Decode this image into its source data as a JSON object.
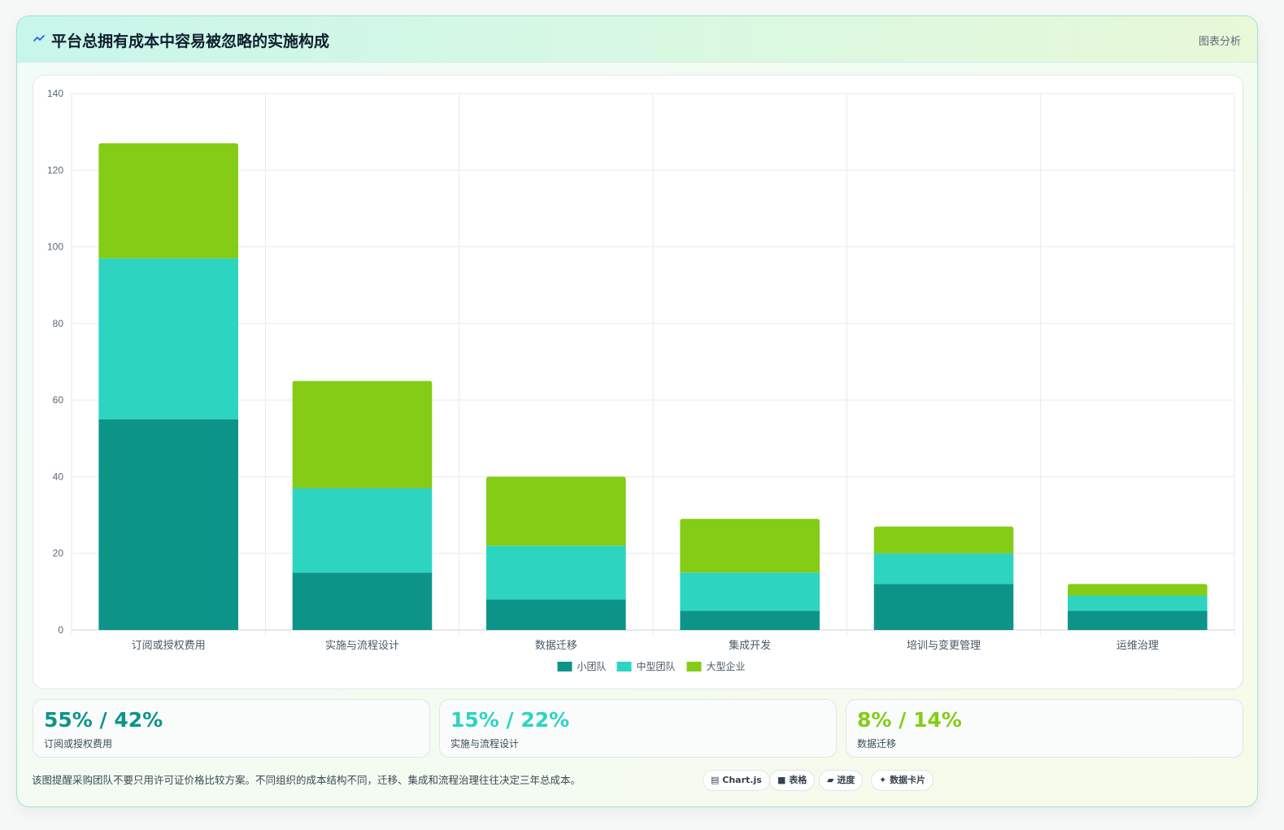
{
  "header": {
    "title": "平台总拥有成本中容易被忽略的实施构成",
    "link_label": "图表分析",
    "icon": "sparkle-icon"
  },
  "chart_data": {
    "type": "bar",
    "stacked": true,
    "categories": [
      "订阅或授权费用",
      "实施与流程设计",
      "数据迁移",
      "集成开发",
      "培训与变更管理",
      "运维治理"
    ],
    "series": [
      {
        "name": "小团队",
        "color": "#0d9488",
        "values": [
          55,
          15,
          8,
          5,
          12,
          5
        ]
      },
      {
        "name": "中型团队",
        "color": "#2dd4bf",
        "values": [
          42,
          22,
          14,
          10,
          8,
          4
        ]
      },
      {
        "name": "大型企业",
        "color": "#84cc16",
        "values": [
          30,
          28,
          18,
          14,
          7,
          3
        ]
      }
    ],
    "ylim": [
      0,
      140
    ],
    "yticks": [
      0,
      20,
      40,
      60,
      80,
      100,
      120,
      140
    ],
    "grid": true,
    "legend": "bottom-center"
  },
  "stats": [
    {
      "value": "55% / 42%",
      "label": "订阅或授权费用",
      "color": "#0d9488"
    },
    {
      "value": "15% / 22%",
      "label": "实施与流程设计",
      "color": "#2dd4bf"
    },
    {
      "value": "8% / 14%",
      "label": "数据迁移",
      "color": "#84cc16"
    }
  ],
  "footer": {
    "note": "该图提醒采购团队不要只用许可证价格比较方案。不同组织的成本结构不同，迁移、集成和流程治理往往决定三年总成本。",
    "chips": [
      {
        "icon": "chart-icon",
        "glyph": "▤",
        "label": "Chart.js"
      },
      {
        "icon": "table-icon",
        "glyph": "■",
        "label": "表格"
      },
      {
        "icon": "progress-icon",
        "glyph": "▰",
        "label": "进度"
      },
      {
        "icon": "card-icon",
        "glyph": "✦",
        "label": "数据卡片"
      }
    ]
  }
}
